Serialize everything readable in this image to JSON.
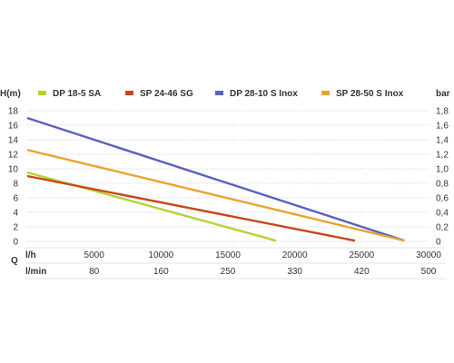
{
  "chart_data": {
    "type": "line",
    "y_left": {
      "label": "H(m)",
      "ticks": [
        "0",
        "2",
        "4",
        "6",
        "8",
        "10",
        "12",
        "14",
        "16",
        "18"
      ],
      "ylim": [
        0,
        18
      ]
    },
    "y_right": {
      "label": "bar",
      "ticks": [
        "0",
        "0,2",
        "0,4",
        "0,6",
        "0,8",
        "1,0",
        "1,2",
        "1,4",
        "1,6",
        "1,8"
      ]
    },
    "x_label_flow": "Q",
    "x_rows": [
      {
        "unit": "l/h",
        "ticks": [
          "5000",
          "10000",
          "15000",
          "20000",
          "25000",
          "30000"
        ],
        "xlim": [
          0,
          30000
        ]
      },
      {
        "unit": "l/min",
        "ticks": [
          "80",
          "160",
          "250",
          "330",
          "420",
          "500"
        ]
      }
    ],
    "grid": true,
    "legend_placement": "top",
    "series": [
      {
        "name": "DP 18-5 SA",
        "color": "#b5d334",
        "x": [
          0,
          18600
        ],
        "y": [
          9.5,
          0.1
        ]
      },
      {
        "name": "SP 24-46 SG",
        "color": "#c8461c",
        "x": [
          0,
          24500
        ],
        "y": [
          9.0,
          0.1
        ]
      },
      {
        "name": "DP 28-10 S Inox",
        "color": "#5b5fbf",
        "x": [
          0,
          28200
        ],
        "y": [
          17.0,
          0.1
        ]
      },
      {
        "name": "SP 28-50 S Inox",
        "color": "#eaa431",
        "x": [
          0,
          28200
        ],
        "y": [
          12.6,
          0.1
        ]
      }
    ]
  }
}
